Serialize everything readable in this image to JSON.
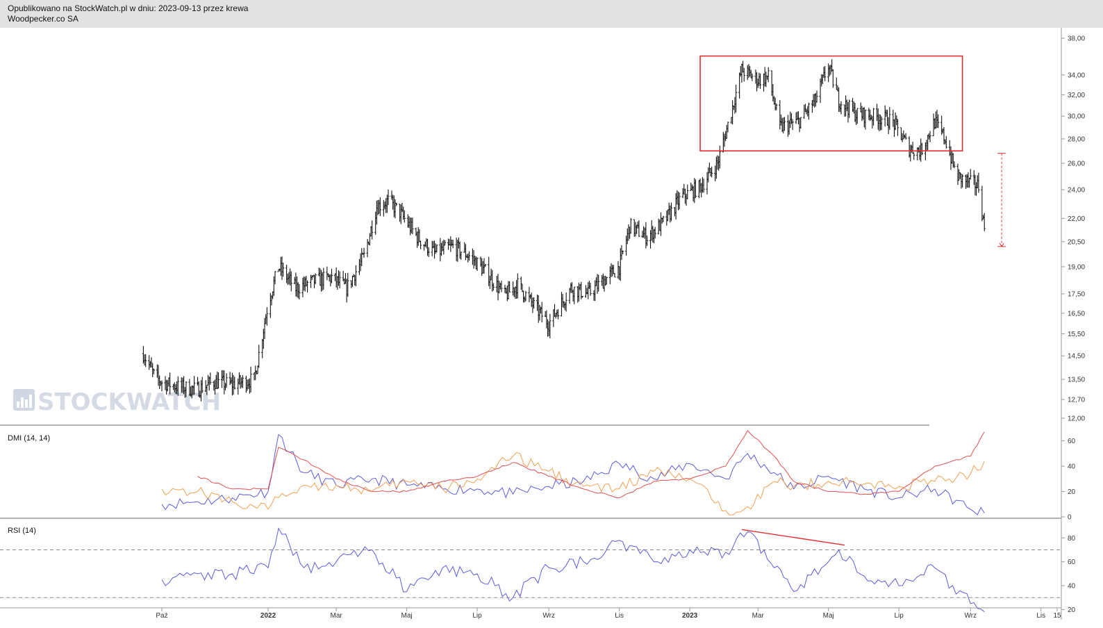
{
  "header": {
    "line1": "Opublikowano na StockWatch.pl w dniu: 2023-09-13 przez krewa",
    "line2": "Woodpecker.co SA"
  },
  "watermark": {
    "text": "STOCKWATCH"
  },
  "colors": {
    "price": "#111111",
    "annotation": "#e03030",
    "dmi_plus": "#5b5bdc",
    "dmi_minus": "#f0a050",
    "adx": "#e05050",
    "rsi": "#5b5bdc",
    "grid_dashed": "#888888"
  },
  "chart_data": [
    {
      "type": "line",
      "panel": "price",
      "style": "ohlc-bars",
      "x_range": [
        "2021-10-01",
        "2023-11-15"
      ],
      "y_scale": "log",
      "y_ticks": [
        12.0,
        12.7,
        13.5,
        14.5,
        15.5,
        16.5,
        17.5,
        19.0,
        20.5,
        22.0,
        24.0,
        26.0,
        28.0,
        30.0,
        32.0,
        34.0,
        38.0
      ],
      "y_tick_labels": [
        "12,00",
        "12,70",
        "13,50",
        "14,50",
        "15,50",
        "16,50",
        "17,50",
        "19,00",
        "20,50",
        "22,00",
        "24,00",
        "26,00",
        "28,00",
        "30,00",
        "32,00",
        "34,00",
        "38,00"
      ],
      "x_tick_labels": [
        "Paź",
        "2022",
        "Mar",
        "Maj",
        "Lip",
        "Wrz",
        "Lis",
        "2023",
        "Mar",
        "Maj",
        "Lip",
        "Wrz",
        "Lis",
        "15"
      ],
      "x_tick_dates": [
        "2021-10-01",
        "2022-01-01",
        "2022-03-01",
        "2022-05-01",
        "2022-07-01",
        "2022-09-01",
        "2022-11-01",
        "2023-01-01",
        "2023-03-01",
        "2023-05-01",
        "2023-07-01",
        "2023-09-01",
        "2023-11-01",
        "2023-11-15"
      ],
      "series": [
        {
          "dates": [
            "2021-09-15",
            "2021-09-25",
            "2021-10-01",
            "2021-10-15",
            "2021-11-01",
            "2021-11-15",
            "2021-12-01",
            "2021-12-20",
            "2022-01-01",
            "2022-01-10",
            "2022-01-25",
            "2022-02-10",
            "2022-02-25",
            "2022-03-10",
            "2022-03-25",
            "2022-04-05",
            "2022-04-15",
            "2022-04-25",
            "2022-05-10",
            "2022-05-25",
            "2022-06-10",
            "2022-06-25",
            "2022-07-10",
            "2022-07-25",
            "2022-08-05",
            "2022-08-20",
            "2022-09-01",
            "2022-09-20",
            "2022-10-05",
            "2022-10-20",
            "2022-11-01",
            "2022-11-10",
            "2022-11-25",
            "2022-12-10",
            "2022-12-25",
            "2023-01-10",
            "2023-01-25",
            "2023-02-05",
            "2023-02-15",
            "2023-03-01",
            "2023-03-10",
            "2023-03-20",
            "2023-04-05",
            "2023-04-20",
            "2023-05-01",
            "2023-05-10",
            "2023-05-25",
            "2023-06-10",
            "2023-06-25",
            "2023-07-10",
            "2023-07-20",
            "2023-08-01",
            "2023-08-10",
            "2023-08-20",
            "2023-09-01",
            "2023-09-08",
            "2023-09-13"
          ],
          "values": [
            14.6,
            13.6,
            13.4,
            13.2,
            13.1,
            13.4,
            13.3,
            13.5,
            17.0,
            19.0,
            17.8,
            18.2,
            18.4,
            17.8,
            19.6,
            22.8,
            23.2,
            22.4,
            20.8,
            19.8,
            20.2,
            19.6,
            18.6,
            17.4,
            18.0,
            16.8,
            16.0,
            17.8,
            17.5,
            18.3,
            19.0,
            21.5,
            20.8,
            21.8,
            23.5,
            24.2,
            26.0,
            30.0,
            34.5,
            33.5,
            33.8,
            29.0,
            29.5,
            31.5,
            35.0,
            31.5,
            30.2,
            30.0,
            29.6,
            27.2,
            27.0,
            29.5,
            28.0,
            25.0,
            24.5,
            24.3,
            21.3
          ]
        }
      ],
      "annotations": [
        {
          "type": "rectangle",
          "x0": "2023-01-10",
          "x1": "2023-08-25",
          "y0": 27.0,
          "y1": 36.0
        },
        {
          "type": "arrow",
          "x": "2023-09-28",
          "y0": 26.8,
          "y1": 20.2
        }
      ]
    },
    {
      "type": "line",
      "panel": "dmi",
      "title": "DMI (14, 14)",
      "y_ticks": [
        0,
        20,
        40,
        60
      ],
      "ylim": [
        0,
        68
      ],
      "x": [
        "2021-10-01",
        "2021-11-01",
        "2021-12-01",
        "2022-01-01",
        "2022-01-10",
        "2022-02-01",
        "2022-03-01",
        "2022-04-01",
        "2022-05-01",
        "2022-06-01",
        "2022-07-01",
        "2022-08-01",
        "2022-09-01",
        "2022-10-01",
        "2022-11-01",
        "2022-12-01",
        "2023-01-01",
        "2023-02-01",
        "2023-02-20",
        "2023-03-15",
        "2023-04-01",
        "2023-05-01",
        "2023-06-01",
        "2023-07-01",
        "2023-08-01",
        "2023-09-01",
        "2023-09-13"
      ],
      "series": [
        {
          "name": "+DI",
          "values": [
            10,
            12,
            15,
            20,
            65,
            35,
            25,
            30,
            25,
            22,
            22,
            18,
            24,
            28,
            42,
            30,
            42,
            30,
            50,
            35,
            22,
            32,
            22,
            15,
            22,
            6,
            3
          ]
        },
        {
          "name": "-DI",
          "values": [
            22,
            20,
            12,
            6,
            15,
            25,
            25,
            20,
            28,
            22,
            30,
            48,
            36,
            24,
            22,
            36,
            30,
            5,
            8,
            28,
            24,
            28,
            26,
            24,
            28,
            34,
            44
          ]
        },
        {
          "name": "ADX",
          "values": [
            null,
            32,
            22,
            22,
            55,
            45,
            30,
            20,
            20,
            28,
            32,
            43,
            32,
            22,
            15,
            28,
            30,
            40,
            68,
            48,
            28,
            20,
            18,
            20,
            40,
            48,
            67
          ]
        }
      ]
    },
    {
      "type": "line",
      "panel": "rsi",
      "title": "RSI (14)",
      "y_ticks": [
        20,
        40,
        60,
        80
      ],
      "ylim": [
        15,
        93
      ],
      "reference_lines": [
        30,
        70
      ],
      "x": [
        "2021-10-01",
        "2021-11-01",
        "2021-12-01",
        "2022-01-01",
        "2022-01-10",
        "2022-02-01",
        "2022-03-01",
        "2022-04-01",
        "2022-05-01",
        "2022-06-01",
        "2022-07-01",
        "2022-08-01",
        "2022-09-01",
        "2022-10-01",
        "2022-11-01",
        "2022-12-01",
        "2023-01-01",
        "2023-02-01",
        "2023-02-20",
        "2023-03-15",
        "2023-04-01",
        "2023-05-01",
        "2023-05-10",
        "2023-06-01",
        "2023-07-01",
        "2023-08-01",
        "2023-09-01",
        "2023-09-13"
      ],
      "series": [
        {
          "name": "RSI",
          "values": [
            45,
            50,
            50,
            55,
            88,
            55,
            60,
            70,
            35,
            55,
            50,
            30,
            55,
            60,
            78,
            60,
            70,
            68,
            85,
            55,
            35,
            60,
            70,
            48,
            40,
            55,
            25,
            18
          ]
        }
      ],
      "annotations": [
        {
          "type": "line",
          "x0": "2023-02-15",
          "y0": 87,
          "x1": "2023-05-15",
          "y1": 74
        }
      ]
    }
  ]
}
